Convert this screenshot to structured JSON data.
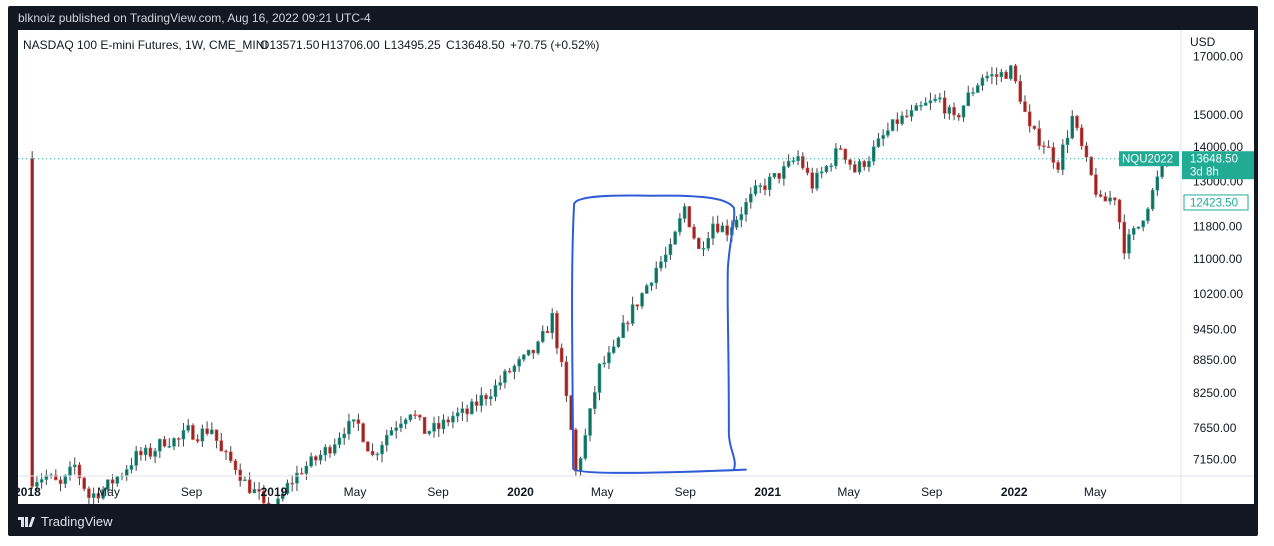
{
  "header": {
    "publisher": "blknoiz published on TradingView.com, Aug 16, 2022 09:21 UTC-4"
  },
  "footer": {
    "brand": "TradingView"
  },
  "chart_data": {
    "type": "candlestick",
    "title": "NASDAQ 100 E-mini Futures, 1W, CME_MINI",
    "ohlc_readout": {
      "open": "O13571.50",
      "high": "H13706.00",
      "low": "L13495.25",
      "close": "C13648.50",
      "change": "+70.75 (+0.52%)"
    },
    "currency": "USD",
    "y_scale": "log",
    "ylim": [
      6900,
      18000
    ],
    "y_ticks": [
      "17000.00",
      "15000.00",
      "14000.00",
      "13000.00",
      "11800.00",
      "11000.00",
      "10200.00",
      "9450.00",
      "8850.00",
      "8250.00",
      "7650.00",
      "7150.00"
    ],
    "x_range": [
      "2017-12-18",
      "2022-09-05"
    ],
    "x_ticks": [
      {
        "date": "2018-01-01",
        "label": "2018",
        "major": true
      },
      {
        "date": "2018-05-01",
        "label": "May",
        "major": false
      },
      {
        "date": "2018-09-01",
        "label": "Sep",
        "major": false
      },
      {
        "date": "2019-01-01",
        "label": "2019",
        "major": true
      },
      {
        "date": "2019-05-01",
        "label": "May",
        "major": false
      },
      {
        "date": "2019-09-01",
        "label": "Sep",
        "major": false
      },
      {
        "date": "2020-01-01",
        "label": "2020",
        "major": true
      },
      {
        "date": "2020-05-01",
        "label": "May",
        "major": false
      },
      {
        "date": "2020-09-01",
        "label": "Sep",
        "major": false
      },
      {
        "date": "2021-01-01",
        "label": "2021",
        "major": true
      },
      {
        "date": "2021-05-01",
        "label": "May",
        "major": false
      },
      {
        "date": "2021-09-01",
        "label": "Sep",
        "major": false
      },
      {
        "date": "2022-01-01",
        "label": "2022",
        "major": true
      },
      {
        "date": "2022-05-01",
        "label": "May",
        "major": false
      }
    ],
    "closes": [
      {
        "date": "2018-01-08",
        "close": 6850
      },
      {
        "date": "2018-01-29",
        "close": 6900
      },
      {
        "date": "2018-02-19",
        "close": 6750
      },
      {
        "date": "2018-03-12",
        "close": 7050
      },
      {
        "date": "2018-04-02",
        "close": 6600
      },
      {
        "date": "2018-04-23",
        "close": 6700
      },
      {
        "date": "2018-05-21",
        "close": 6950
      },
      {
        "date": "2018-06-11",
        "close": 7200
      },
      {
        "date": "2018-07-02",
        "close": 7250
      },
      {
        "date": "2018-07-23",
        "close": 7450
      },
      {
        "date": "2018-08-13",
        "close": 7450
      },
      {
        "date": "2018-08-27",
        "close": 7600
      },
      {
        "date": "2018-09-10",
        "close": 7550
      },
      {
        "date": "2018-10-01",
        "close": 7650
      },
      {
        "date": "2018-10-15",
        "close": 7250
      },
      {
        "date": "2018-11-05",
        "close": 7050
      },
      {
        "date": "2018-11-19",
        "close": 6800
      },
      {
        "date": "2018-12-10",
        "close": 6600
      },
      {
        "date": "2018-12-24",
        "close": 6250
      },
      {
        "date": "2019-01-21",
        "close": 6750
      },
      {
        "date": "2019-02-11",
        "close": 7000
      },
      {
        "date": "2019-03-04",
        "close": 7150
      },
      {
        "date": "2019-03-25",
        "close": 7350
      },
      {
        "date": "2019-04-15",
        "close": 7650
      },
      {
        "date": "2019-05-06",
        "close": 7700
      },
      {
        "date": "2019-05-27",
        "close": 7200
      },
      {
        "date": "2019-06-17",
        "close": 7550
      },
      {
        "date": "2019-07-08",
        "close": 7800
      },
      {
        "date": "2019-07-22",
        "close": 7950
      },
      {
        "date": "2019-08-12",
        "close": 7600
      },
      {
        "date": "2019-09-02",
        "close": 7650
      },
      {
        "date": "2019-09-23",
        "close": 7850
      },
      {
        "date": "2019-10-14",
        "close": 7900
      },
      {
        "date": "2019-11-04",
        "close": 8150
      },
      {
        "date": "2019-11-25",
        "close": 8350
      },
      {
        "date": "2019-12-16",
        "close": 8650
      },
      {
        "date": "2020-01-06",
        "close": 8850
      },
      {
        "date": "2020-01-27",
        "close": 9100
      },
      {
        "date": "2020-02-17",
        "close": 9700
      },
      {
        "date": "2020-03-02",
        "close": 8700
      },
      {
        "date": "2020-03-16",
        "close": 7600
      },
      {
        "date": "2020-03-23",
        "close": 6950
      },
      {
        "date": "2020-04-06",
        "close": 7500
      },
      {
        "date": "2020-04-27",
        "close": 8700
      },
      {
        "date": "2020-05-18",
        "close": 9000
      },
      {
        "date": "2020-06-08",
        "close": 9700
      },
      {
        "date": "2020-06-29",
        "close": 10200
      },
      {
        "date": "2020-07-20",
        "close": 10800
      },
      {
        "date": "2020-08-10",
        "close": 11200
      },
      {
        "date": "2020-08-31",
        "close": 12300
      },
      {
        "date": "2020-09-21",
        "close": 11200
      },
      {
        "date": "2020-10-12",
        "close": 11900
      },
      {
        "date": "2020-11-02",
        "close": 11700
      },
      {
        "date": "2020-11-23",
        "close": 12200
      },
      {
        "date": "2020-12-14",
        "close": 12700
      },
      {
        "date": "2021-01-04",
        "close": 13000
      },
      {
        "date": "2021-01-25",
        "close": 13300
      },
      {
        "date": "2021-02-15",
        "close": 13700
      },
      {
        "date": "2021-03-08",
        "close": 12900
      },
      {
        "date": "2021-03-29",
        "close": 13400
      },
      {
        "date": "2021-04-19",
        "close": 14000
      },
      {
        "date": "2021-05-10",
        "close": 13300
      },
      {
        "date": "2021-05-31",
        "close": 13700
      },
      {
        "date": "2021-06-21",
        "close": 14300
      },
      {
        "date": "2021-07-12",
        "close": 14800
      },
      {
        "date": "2021-08-02",
        "close": 15000
      },
      {
        "date": "2021-08-23",
        "close": 15300
      },
      {
        "date": "2021-09-13",
        "close": 15500
      },
      {
        "date": "2021-10-04",
        "close": 14800
      },
      {
        "date": "2021-10-25",
        "close": 15600
      },
      {
        "date": "2021-11-15",
        "close": 16300
      },
      {
        "date": "2021-12-06",
        "close": 16300
      },
      {
        "date": "2021-12-27",
        "close": 16500
      },
      {
        "date": "2022-01-10",
        "close": 15600
      },
      {
        "date": "2022-01-24",
        "close": 14500
      },
      {
        "date": "2022-02-14",
        "close": 14100
      },
      {
        "date": "2022-03-07",
        "close": 13500
      },
      {
        "date": "2022-03-28",
        "close": 14900
      },
      {
        "date": "2022-04-18",
        "close": 13500
      },
      {
        "date": "2022-05-09",
        "close": 12400
      },
      {
        "date": "2022-05-30",
        "close": 12600
      },
      {
        "date": "2022-06-13",
        "close": 11300
      },
      {
        "date": "2022-07-04",
        "close": 11800
      },
      {
        "date": "2022-07-25",
        "close": 12700
      },
      {
        "date": "2022-08-08",
        "close": 13400
      },
      {
        "date": "2022-08-15",
        "close": 13648.5
      }
    ],
    "horizontal_line": {
      "value": 13648.5,
      "style": "dotted",
      "color": "#22ab94"
    },
    "price_labels": [
      {
        "symbol": "NQU2022",
        "value": "13648.50",
        "countdown": "3d 8h",
        "color": "#22ab94"
      },
      {
        "value": "12423.50",
        "color": "#22ab94",
        "outlined": true
      }
    ],
    "drawing": {
      "type": "freehand-box",
      "color": "#2f5cd6",
      "x_start": "2020-03-16",
      "x_end": "2020-11-09",
      "y_low": 6950,
      "y_high": 12550
    },
    "colors": {
      "up": "#26a69a",
      "up_body": "#1b6b5b",
      "down": "#ef5350",
      "down_body": "#8c2a2a",
      "wick": "#444444"
    }
  }
}
